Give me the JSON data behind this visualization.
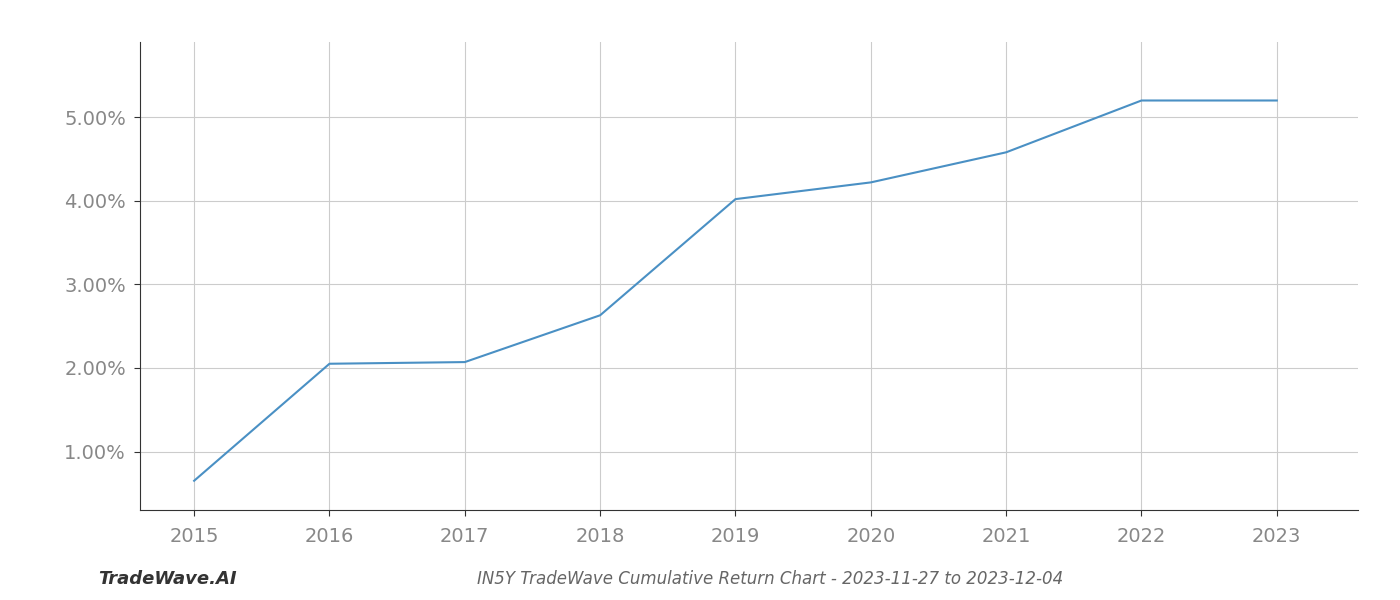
{
  "x": [
    2015,
    2016,
    2017,
    2018,
    2019,
    2020,
    2021,
    2022,
    2023
  ],
  "y": [
    0.65,
    2.05,
    2.07,
    2.63,
    4.02,
    4.22,
    4.58,
    5.2,
    5.2
  ],
  "line_color": "#4a90c4",
  "line_width": 1.5,
  "background_color": "#ffffff",
  "grid_color": "#cccccc",
  "title": "IN5Y TradeWave Cumulative Return Chart - 2023-11-27 to 2023-12-04",
  "watermark": "TradeWave.AI",
  "ylim": [
    0.3,
    5.9
  ],
  "yticks": [
    1.0,
    2.0,
    3.0,
    4.0,
    5.0
  ],
  "ytick_labels": [
    "1.00%",
    "2.00%",
    "3.00%",
    "4.00%",
    "5.00%"
  ],
  "xticks": [
    2015,
    2016,
    2017,
    2018,
    2019,
    2020,
    2021,
    2022,
    2023
  ],
  "xlim": [
    2014.6,
    2023.6
  ],
  "title_fontsize": 12,
  "tick_fontsize": 14,
  "watermark_fontsize": 13,
  "label_color": "#888888"
}
